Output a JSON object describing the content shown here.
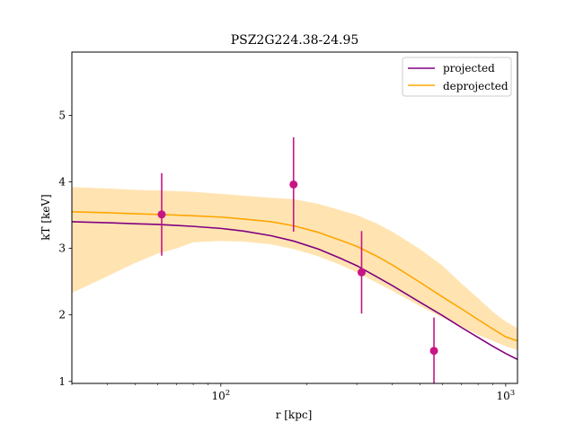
{
  "chart_data": {
    "type": "line",
    "title": "PSZ2G224.38-24.95",
    "xlabel": "r [kpc]",
    "ylabel": "kT [keV]",
    "xscale": "log",
    "xlim": [
      30,
      1100
    ],
    "ylim": [
      0.97,
      5.95
    ],
    "x_major_ticks": [
      100,
      1000
    ],
    "x_major_tick_labels": [
      "10^2",
      "10^3"
    ],
    "y_ticks": [
      1,
      2,
      3,
      4,
      5
    ],
    "legend_position": "top-right",
    "series": [
      {
        "name": "projected",
        "kind": "line",
        "color": "#800080",
        "x": [
          30,
          40,
          50,
          60,
          70,
          80,
          100,
          120,
          150,
          180,
          220,
          260,
          300,
          350,
          400,
          500,
          600,
          700,
          800,
          900,
          1000,
          1100
        ],
        "y": [
          3.4,
          3.385,
          3.37,
          3.36,
          3.345,
          3.33,
          3.3,
          3.26,
          3.19,
          3.11,
          2.99,
          2.86,
          2.74,
          2.58,
          2.44,
          2.19,
          1.99,
          1.81,
          1.66,
          1.53,
          1.42,
          1.33
        ]
      },
      {
        "name": "deprojected",
        "kind": "line",
        "color": "#ffa500",
        "x": [
          30,
          40,
          50,
          60,
          70,
          80,
          100,
          120,
          150,
          180,
          220,
          260,
          300,
          350,
          400,
          500,
          600,
          700,
          800,
          900,
          1000,
          1100
        ],
        "y": [
          3.55,
          3.535,
          3.52,
          3.51,
          3.5,
          3.49,
          3.47,
          3.44,
          3.4,
          3.34,
          3.24,
          3.13,
          3.03,
          2.89,
          2.75,
          2.49,
          2.27,
          2.09,
          1.93,
          1.79,
          1.67,
          1.61
        ]
      }
    ],
    "band": {
      "series": "deprojected",
      "color": "#ffa500",
      "x": [
        30,
        40,
        50,
        60,
        70,
        80,
        100,
        120,
        150,
        180,
        220,
        260,
        300,
        350,
        400,
        500,
        600,
        700,
        800,
        900,
        1000,
        1100
      ],
      "lower": [
        2.33,
        2.58,
        2.78,
        2.92,
        3.0,
        3.09,
        3.11,
        3.1,
        3.06,
        2.99,
        2.88,
        2.76,
        2.64,
        2.49,
        2.36,
        2.13,
        1.96,
        1.82,
        1.7,
        1.61,
        1.53,
        1.47
      ],
      "upper": [
        3.92,
        3.9,
        3.88,
        3.87,
        3.86,
        3.85,
        3.82,
        3.79,
        3.76,
        3.74,
        3.67,
        3.58,
        3.5,
        3.38,
        3.25,
        2.99,
        2.74,
        2.47,
        2.25,
        2.05,
        1.9,
        1.8
      ]
    },
    "points": {
      "color": "#c71585",
      "x": [
        62,
        180,
        312,
        560
      ],
      "y": [
        3.51,
        3.96,
        2.64,
        1.46
      ],
      "yerr_low": [
        0.62,
        0.71,
        0.62,
        0.5
      ],
      "yerr_high": [
        0.62,
        0.71,
        0.62,
        0.5
      ]
    }
  }
}
